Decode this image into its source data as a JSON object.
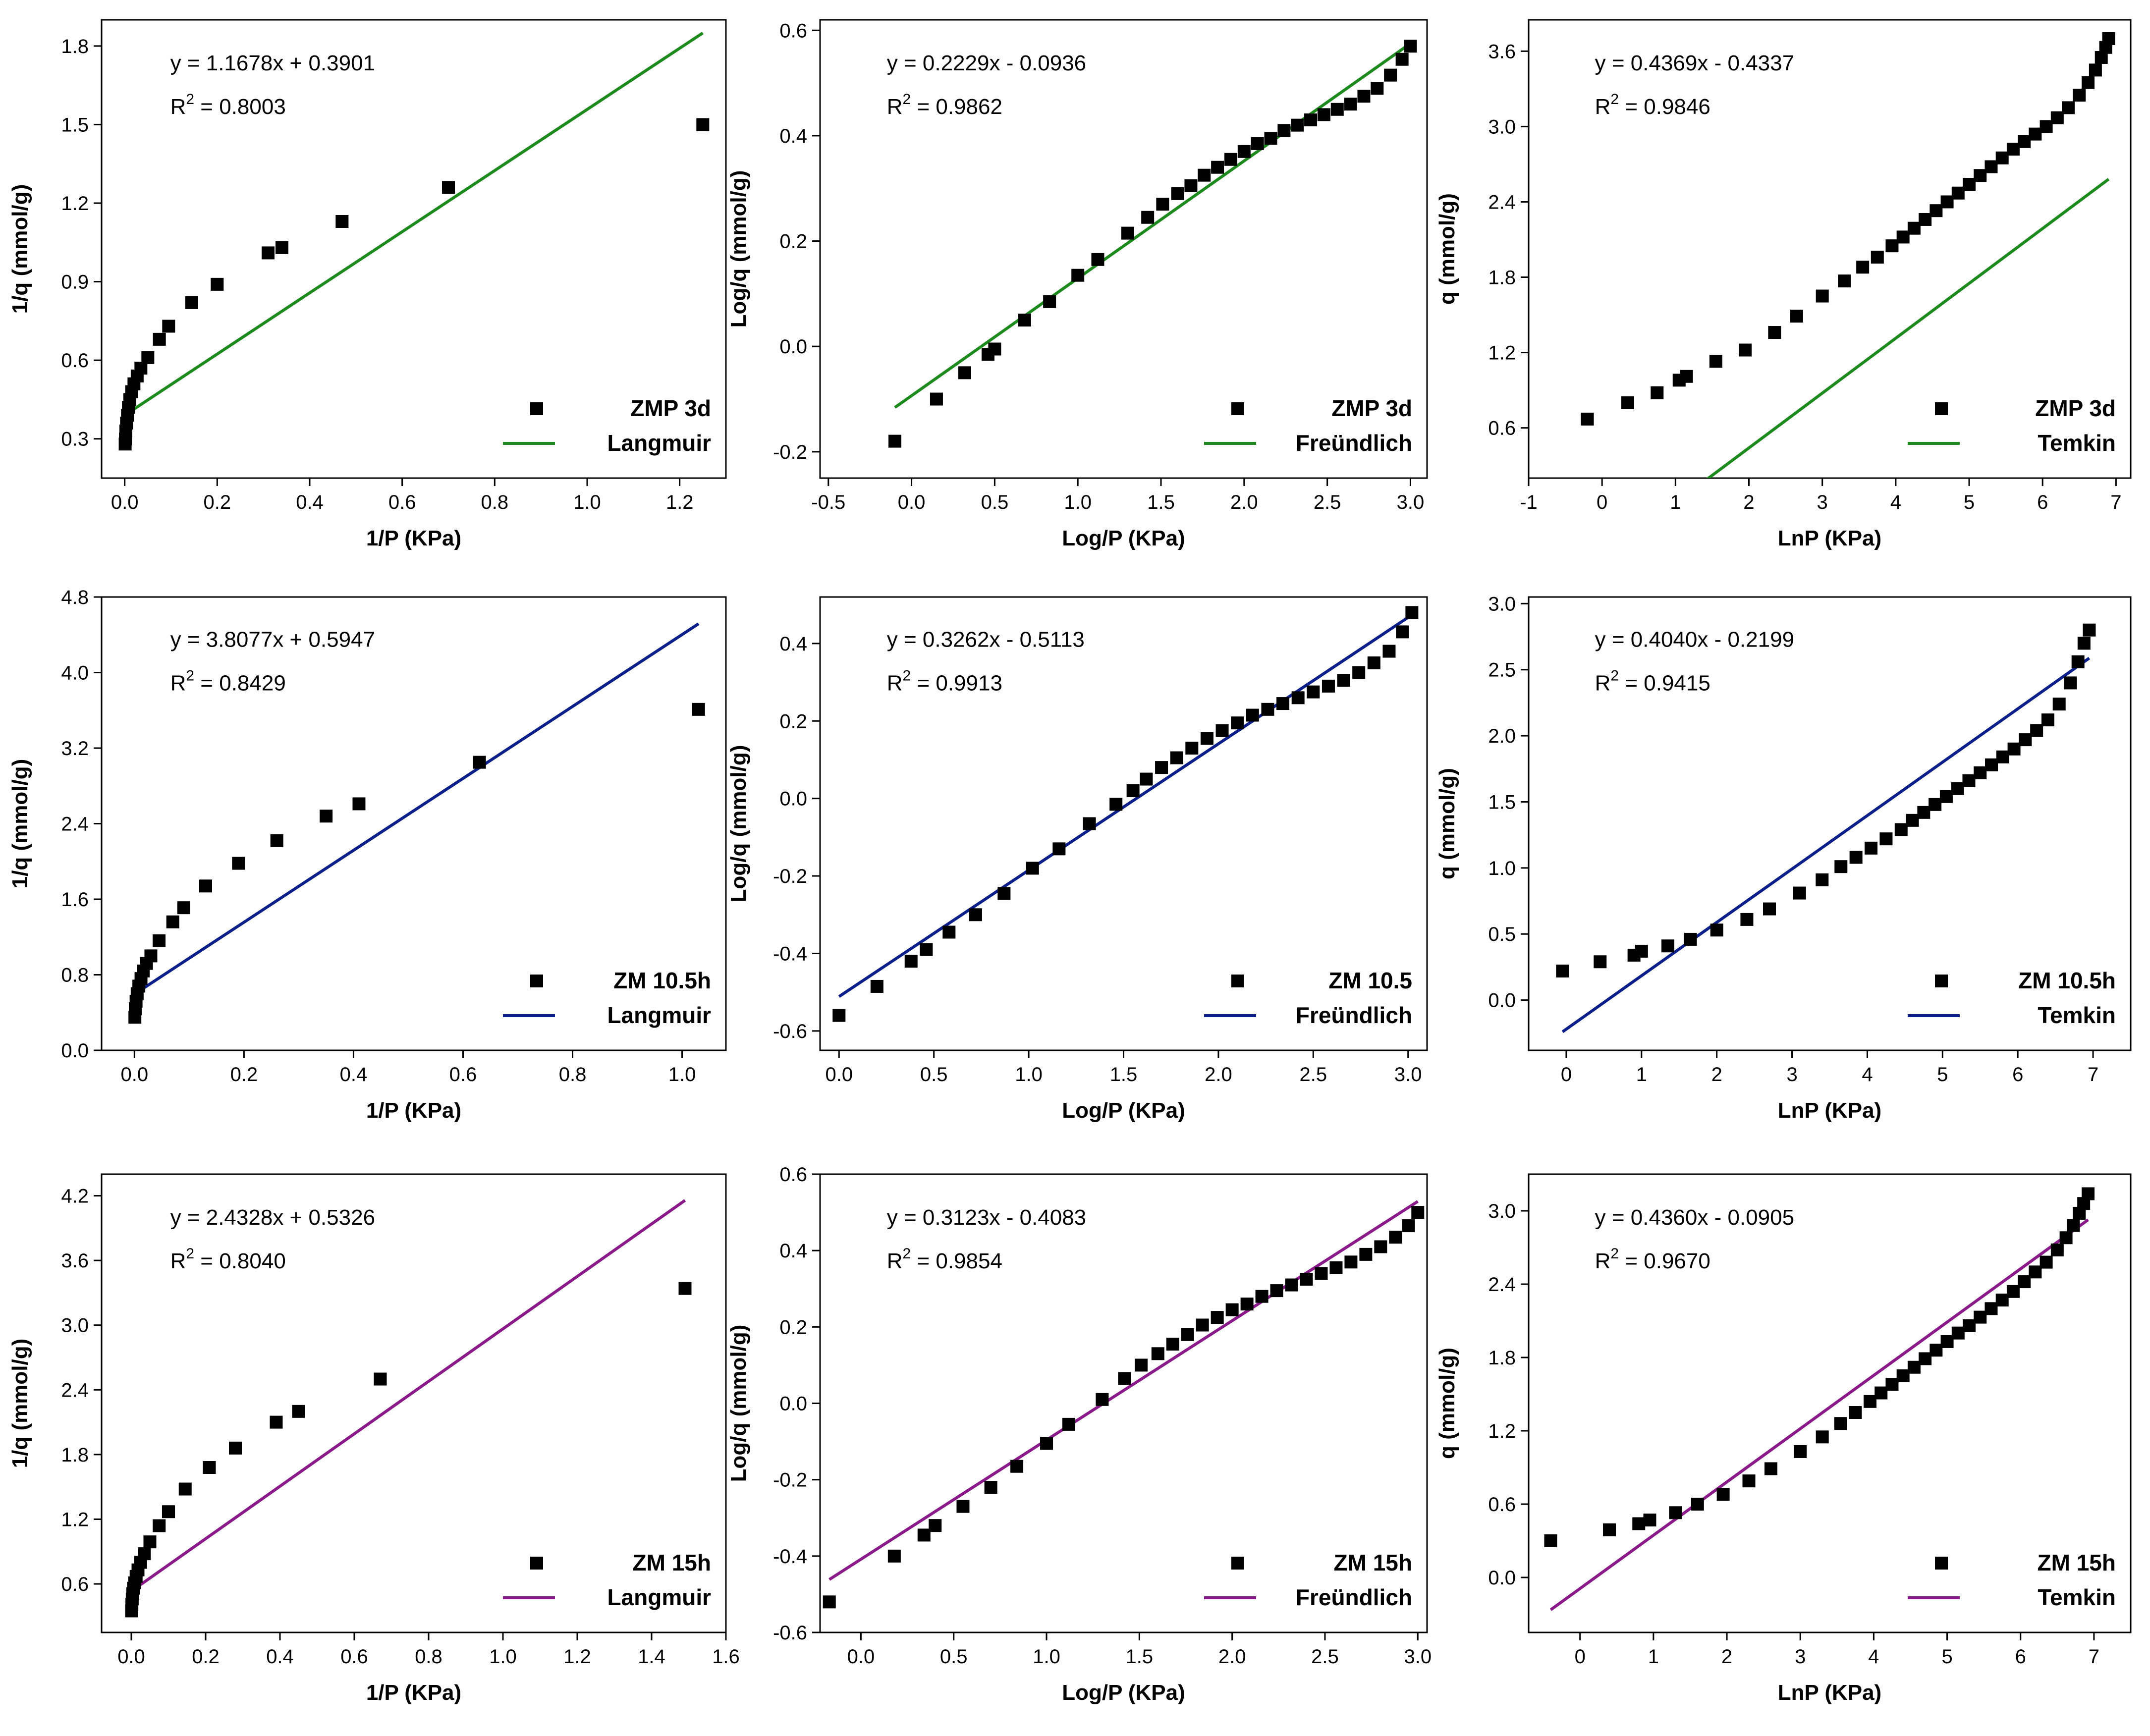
{
  "chart_data": [
    {
      "type": "scatter",
      "model": "Langmuir",
      "xlabel": "1/P (KPa)",
      "ylabel": "1/q (mmol/g)",
      "xlim": [
        -0.05,
        1.3
      ],
      "ylim": [
        0.15,
        1.9
      ],
      "xticks": [
        "0.0",
        "0.2",
        "0.4",
        "0.6",
        "0.8",
        "1.0",
        "1.2"
      ],
      "xtick_values": [
        0,
        0.2,
        0.4,
        0.6,
        0.8,
        1.0,
        1.2
      ],
      "yticks": [
        "0.3",
        "0.6",
        "0.9",
        "1.2",
        "1.5",
        "1.8"
      ],
      "ytick_values": [
        0.3,
        0.6,
        0.9,
        1.2,
        1.5,
        1.8
      ],
      "equation": "y = 1.1678x + 0.3901",
      "r2_label": "R",
      "r2_sup": "2",
      "r2_value": " = 0.8003",
      "legend": {
        "marker_label": "ZMP 3d",
        "line_label": "Langmuir"
      },
      "line": {
        "color": "#1d8a1d",
        "slope": 1.1678,
        "intercept": 0.3901,
        "x_range": [
          0,
          1.25
        ]
      },
      "x": [
        1.25,
        0.7,
        0.47,
        0.34,
        0.31,
        0.2,
        0.145,
        0.095,
        0.075,
        0.05,
        0.035,
        0.027,
        0.02,
        0.015,
        0.011,
        0.008,
        0.006,
        0.004,
        0.0025,
        0.0015,
        0.001
      ],
      "y": [
        1.5,
        1.26,
        1.13,
        1.03,
        1.01,
        0.89,
        0.82,
        0.73,
        0.68,
        0.61,
        0.57,
        0.54,
        0.51,
        0.48,
        0.45,
        0.42,
        0.39,
        0.36,
        0.33,
        0.3,
        0.28
      ]
    },
    {
      "type": "scatter",
      "model": "Freundlich",
      "xlabel": "Log/P (KPa)",
      "ylabel": "Log/q (mmol/g)",
      "xlim": [
        -0.55,
        3.1
      ],
      "ylim": [
        -0.25,
        0.62
      ],
      "xticks": [
        "-0.5",
        "0.0",
        "0.5",
        "1.0",
        "1.5",
        "2.0",
        "2.5",
        "3.0"
      ],
      "xtick_values": [
        -0.5,
        0,
        0.5,
        1.0,
        1.5,
        2.0,
        2.5,
        3.0
      ],
      "yticks": [
        "-0.2",
        "0.0",
        "0.2",
        "0.4",
        "0.6"
      ],
      "ytick_values": [
        -0.2,
        0,
        0.2,
        0.4,
        0.6
      ],
      "equation": "y = 0.2229x - 0.0936",
      "r2_label": "R",
      "r2_sup": "2",
      "r2_value": " = 0.9862",
      "legend": {
        "marker_label": "ZMP 3d",
        "line_label": "Freündlich"
      },
      "line": {
        "color": "#1d8a1d",
        "slope": 0.2229,
        "intercept": -0.0936,
        "x_range": [
          -0.1,
          3.0
        ]
      },
      "x": [
        -0.1,
        0.15,
        0.32,
        0.46,
        0.5,
        0.68,
        0.83,
        1.0,
        1.12,
        1.3,
        1.42,
        1.51,
        1.6,
        1.68,
        1.76,
        1.84,
        1.92,
        2.0,
        2.08,
        2.16,
        2.24,
        2.32,
        2.4,
        2.48,
        2.56,
        2.64,
        2.72,
        2.8,
        2.88,
        2.95,
        3.0
      ],
      "y": [
        -0.18,
        -0.1,
        -0.05,
        -0.015,
        -0.005,
        0.05,
        0.085,
        0.135,
        0.165,
        0.215,
        0.245,
        0.27,
        0.29,
        0.305,
        0.325,
        0.34,
        0.355,
        0.37,
        0.385,
        0.395,
        0.41,
        0.42,
        0.43,
        0.44,
        0.45,
        0.46,
        0.475,
        0.49,
        0.515,
        0.545,
        0.57
      ]
    },
    {
      "type": "scatter",
      "model": "Temkin",
      "xlabel": "LnP (KPa)",
      "ylabel": "q (mmol/g)",
      "xlim": [
        -1,
        7.2
      ],
      "ylim": [
        0.2,
        3.85
      ],
      "xticks": [
        "-1",
        "0",
        "1",
        "2",
        "3",
        "4",
        "5",
        "6",
        "7"
      ],
      "xtick_values": [
        -1,
        0,
        1,
        2,
        3,
        4,
        5,
        6,
        7
      ],
      "yticks": [
        "0.6",
        "1.2",
        "1.8",
        "2.4",
        "3.0",
        "3.6"
      ],
      "ytick_values": [
        0.6,
        1.2,
        1.8,
        2.4,
        3.0,
        3.6
      ],
      "equation": "y = 0.4369x - 0.4337",
      "r2_label": "R",
      "r2_sup": "2",
      "r2_value": " = 0.9846",
      "legend": {
        "marker_label": "ZMP 3d",
        "line_label": "Temkin"
      },
      "line": {
        "color": "#1d8a1d",
        "slope": 0.4369,
        "intercept": -0.4337,
        "x_range": [
          -0.2,
          6.9
        ]
      },
      "x": [
        -0.2,
        0.35,
        0.75,
        1.05,
        1.15,
        1.55,
        1.95,
        2.35,
        2.65,
        3.0,
        3.3,
        3.55,
        3.75,
        3.95,
        4.1,
        4.25,
        4.4,
        4.55,
        4.7,
        4.85,
        5.0,
        5.15,
        5.3,
        5.45,
        5.6,
        5.75,
        5.9,
        6.05,
        6.2,
        6.35,
        6.5,
        6.62,
        6.72,
        6.8,
        6.86,
        6.9
      ],
      "y": [
        0.67,
        0.8,
        0.88,
        0.98,
        1.01,
        1.13,
        1.22,
        1.36,
        1.49,
        1.65,
        1.77,
        1.88,
        1.96,
        2.05,
        2.12,
        2.19,
        2.26,
        2.33,
        2.4,
        2.47,
        2.54,
        2.61,
        2.68,
        2.75,
        2.82,
        2.88,
        2.94,
        3.0,
        3.07,
        3.15,
        3.25,
        3.35,
        3.45,
        3.55,
        3.63,
        3.7
      ]
    },
    {
      "type": "scatter",
      "model": "Langmuir",
      "xlabel": "1/P (KPa)",
      "ylabel": "1/q (mmol/g)",
      "xlim": [
        -0.06,
        1.08
      ],
      "ylim": [
        0,
        4.8
      ],
      "xticks": [
        "0.0",
        "0.2",
        "0.4",
        "0.6",
        "0.8",
        "1.0"
      ],
      "xtick_values": [
        0,
        0.2,
        0.4,
        0.6,
        0.8,
        1.0
      ],
      "yticks": [
        "0.0",
        "0.8",
        "1.6",
        "2.4",
        "3.2",
        "4.0",
        "4.8"
      ],
      "ytick_values": [
        0,
        0.8,
        1.6,
        2.4,
        3.2,
        4.0,
        4.8
      ],
      "equation": "y = 3.8077x + 0.5947",
      "r2_label": "R",
      "r2_sup": "2",
      "r2_value": " = 0.8429",
      "legend": {
        "marker_label": "ZM 10.5h",
        "line_label": "Langmuir"
      },
      "line": {
        "color": "#0b1f8a",
        "slope": 3.8077,
        "intercept": 0.5947,
        "x_range": [
          0,
          1.03
        ]
      },
      "x": [
        1.03,
        0.63,
        0.41,
        0.35,
        0.26,
        0.19,
        0.13,
        0.09,
        0.07,
        0.045,
        0.03,
        0.022,
        0.016,
        0.012,
        0.008,
        0.005,
        0.003,
        0.0015,
        0.0008
      ],
      "y": [
        3.61,
        3.05,
        2.61,
        2.48,
        2.22,
        1.98,
        1.74,
        1.51,
        1.36,
        1.16,
        1.0,
        0.92,
        0.84,
        0.76,
        0.68,
        0.6,
        0.52,
        0.44,
        0.35
      ]
    },
    {
      "type": "scatter",
      "model": "Freundlich",
      "xlabel": "Log/P (KPa)",
      "ylabel": "Log/q (mmol/g)",
      "xlim": [
        -0.1,
        3.1
      ],
      "ylim": [
        -0.65,
        0.52
      ],
      "xticks": [
        "0.0",
        "0.5",
        "1.0",
        "1.5",
        "2.0",
        "2.5",
        "3.0"
      ],
      "xtick_values": [
        0,
        0.5,
        1.0,
        1.5,
        2.0,
        2.5,
        3.0
      ],
      "yticks": [
        "-0.6",
        "-0.4",
        "-0.2",
        "0.0",
        "0.2",
        "0.4"
      ],
      "ytick_values": [
        -0.6,
        -0.4,
        -0.2,
        0,
        0.2,
        0.4
      ],
      "equation": "y = 0.3262x - 0.5113",
      "r2_label": "R",
      "r2_sup": "2",
      "r2_value": " = 0.9913",
      "legend": {
        "marker_label": "ZM 10.5",
        "line_label": "Freündlich"
      },
      "line": {
        "color": "#0b1f8a",
        "slope": 0.3262,
        "intercept": -0.5113,
        "x_range": [
          0,
          3.0
        ]
      },
      "x": [
        0.0,
        0.2,
        0.38,
        0.46,
        0.58,
        0.72,
        0.87,
        1.02,
        1.16,
        1.32,
        1.46,
        1.55,
        1.62,
        1.7,
        1.78,
        1.86,
        1.94,
        2.02,
        2.1,
        2.18,
        2.26,
        2.34,
        2.42,
        2.5,
        2.58,
        2.66,
        2.74,
        2.82,
        2.9,
        2.97,
        3.02
      ],
      "y": [
        -0.56,
        -0.485,
        -0.42,
        -0.39,
        -0.345,
        -0.3,
        -0.245,
        -0.18,
        -0.13,
        -0.065,
        -0.015,
        0.02,
        0.05,
        0.08,
        0.105,
        0.13,
        0.155,
        0.175,
        0.195,
        0.215,
        0.23,
        0.245,
        0.26,
        0.275,
        0.29,
        0.305,
        0.325,
        0.35,
        0.38,
        0.43,
        0.48
      ]
    },
    {
      "type": "scatter",
      "model": "Temkin",
      "xlabel": "LnP (KPa)",
      "ylabel": "q (mmol/g)",
      "xlim": [
        -0.5,
        7.5
      ],
      "ylim": [
        -0.38,
        3.05
      ],
      "xticks": [
        "0",
        "1",
        "2",
        "3",
        "4",
        "5",
        "6",
        "7"
      ],
      "xtick_values": [
        0,
        1,
        2,
        3,
        4,
        5,
        6,
        7
      ],
      "yticks": [
        "0.0",
        "0.5",
        "1.0",
        "1.5",
        "2.0",
        "2.5",
        "3.0"
      ],
      "ytick_values": [
        0,
        0.5,
        1.0,
        1.5,
        2.0,
        2.5,
        3.0
      ],
      "equation": "y = 0.4040x - 0.2199",
      "r2_label": "R",
      "r2_sup": "2",
      "r2_value": " = 0.9415",
      "legend": {
        "marker_label": "ZM 10.5h",
        "line_label": "Temkin"
      },
      "line": {
        "color": "#0b1f8a",
        "slope": 0.404,
        "intercept": -0.2199,
        "x_range": [
          -0.05,
          6.95
        ]
      },
      "x": [
        -0.05,
        0.45,
        0.9,
        1.0,
        1.35,
        1.65,
        2.0,
        2.4,
        2.7,
        3.1,
        3.4,
        3.65,
        3.85,
        4.05,
        4.25,
        4.45,
        4.6,
        4.75,
        4.9,
        5.05,
        5.2,
        5.35,
        5.5,
        5.65,
        5.8,
        5.95,
        6.1,
        6.25,
        6.4,
        6.55,
        6.7,
        6.8,
        6.88,
        6.95
      ],
      "y": [
        0.22,
        0.29,
        0.34,
        0.37,
        0.41,
        0.46,
        0.53,
        0.61,
        0.69,
        0.81,
        0.91,
        1.01,
        1.08,
        1.15,
        1.22,
        1.29,
        1.36,
        1.42,
        1.48,
        1.54,
        1.6,
        1.66,
        1.72,
        1.78,
        1.84,
        1.9,
        1.97,
        2.04,
        2.12,
        2.24,
        2.4,
        2.56,
        2.7,
        2.8
      ]
    },
    {
      "type": "scatter",
      "model": "Langmuir",
      "xlabel": "1/P (KPa)",
      "ylabel": "1/q (mmol/g)",
      "xlim": [
        -0.08,
        1.6
      ],
      "ylim": [
        0.15,
        4.4
      ],
      "xticks": [
        "0.0",
        "0.2",
        "0.4",
        "0.6",
        "0.8",
        "1.0",
        "1.2",
        "1.4",
        "1.6"
      ],
      "xtick_values": [
        0,
        0.2,
        0.4,
        0.6,
        0.8,
        1.0,
        1.2,
        1.4,
        1.6
      ],
      "yticks": [
        "0.6",
        "1.2",
        "1.8",
        "2.4",
        "3.0",
        "3.6",
        "4.2"
      ],
      "ytick_values": [
        0.6,
        1.2,
        1.8,
        2.4,
        3.0,
        3.6,
        4.2
      ],
      "equation": "y = 2.4328x + 0.5326",
      "r2_label": "R",
      "r2_sup": "2",
      "r2_value": " = 0.8040",
      "legend": {
        "marker_label": "ZM 15h",
        "line_label": "Langmuir"
      },
      "line": {
        "color": "#8a1a8a",
        "slope": 2.4328,
        "intercept": 0.5326,
        "x_range": [
          0,
          1.49
        ]
      },
      "x": [
        1.49,
        0.67,
        0.45,
        0.39,
        0.28,
        0.21,
        0.145,
        0.1,
        0.075,
        0.05,
        0.035,
        0.025,
        0.018,
        0.013,
        0.009,
        0.006,
        0.004,
        0.0025,
        0.0015,
        0.0008
      ],
      "y": [
        3.34,
        2.5,
        2.2,
        2.1,
        1.86,
        1.68,
        1.48,
        1.27,
        1.14,
        0.99,
        0.88,
        0.8,
        0.73,
        0.67,
        0.61,
        0.56,
        0.51,
        0.46,
        0.41,
        0.35
      ]
    },
    {
      "type": "scatter",
      "model": "Freundlich",
      "xlabel": "Log/P (KPa)",
      "ylabel": "Log/q (mmol/g)",
      "xlim": [
        -0.22,
        3.05
      ],
      "ylim": [
        -0.6,
        0.6
      ],
      "xticks": [
        "0.0",
        "0.5",
        "1.0",
        "1.5",
        "2.0",
        "2.5",
        "3.0"
      ],
      "xtick_values": [
        0,
        0.5,
        1.0,
        1.5,
        2.0,
        2.5,
        3.0
      ],
      "yticks": [
        "-0.6",
        "-0.4",
        "-0.2",
        "0.0",
        "0.2",
        "0.4",
        "0.6"
      ],
      "ytick_values": [
        -0.6,
        -0.4,
        -0.2,
        0,
        0.2,
        0.4,
        0.6
      ],
      "equation": "y = 0.3123x - 0.4083",
      "r2_label": "R",
      "r2_sup": "2",
      "r2_value": " = 0.9854",
      "legend": {
        "marker_label": "ZM 15h",
        "line_label": "Freündlich"
      },
      "line": {
        "color": "#8a1a8a",
        "slope": 0.3123,
        "intercept": -0.4083,
        "x_range": [
          -0.17,
          3.0
        ]
      },
      "x": [
        -0.17,
        0.18,
        0.34,
        0.4,
        0.55,
        0.7,
        0.84,
        1.0,
        1.12,
        1.3,
        1.42,
        1.51,
        1.6,
        1.68,
        1.76,
        1.84,
        1.92,
        2.0,
        2.08,
        2.16,
        2.24,
        2.32,
        2.4,
        2.48,
        2.56,
        2.64,
        2.72,
        2.8,
        2.88,
        2.95,
        3.0
      ],
      "y": [
        -0.52,
        -0.4,
        -0.345,
        -0.32,
        -0.27,
        -0.22,
        -0.165,
        -0.105,
        -0.055,
        0.01,
        0.065,
        0.1,
        0.13,
        0.155,
        0.18,
        0.205,
        0.225,
        0.245,
        0.26,
        0.28,
        0.295,
        0.31,
        0.325,
        0.34,
        0.355,
        0.37,
        0.39,
        0.41,
        0.435,
        0.465,
        0.5
      ]
    },
    {
      "type": "scatter",
      "model": "Temkin",
      "xlabel": "LnP (KPa)",
      "ylabel": "q (mmol/g)",
      "xlim": [
        -0.7,
        7.5
      ],
      "ylim": [
        -0.45,
        3.3
      ],
      "xticks": [
        "0",
        "1",
        "2",
        "3",
        "4",
        "5",
        "6",
        "7"
      ],
      "xtick_values": [
        0,
        1,
        2,
        3,
        4,
        5,
        6,
        7
      ],
      "yticks": [
        "0.0",
        "0.6",
        "1.2",
        "1.8",
        "2.4",
        "3.0"
      ],
      "ytick_values": [
        0,
        0.6,
        1.2,
        1.8,
        2.4,
        3.0
      ],
      "equation": "y = 0.4360x - 0.0905",
      "r2_label": "R",
      "r2_sup": "2",
      "r2_value": " = 0.9670",
      "legend": {
        "marker_label": "ZM 15h",
        "line_label": "Temkin"
      },
      "line": {
        "color": "#8a1a8a",
        "slope": 0.436,
        "intercept": -0.0905,
        "x_range": [
          -0.4,
          6.92
        ]
      },
      "x": [
        -0.4,
        0.4,
        0.8,
        0.95,
        1.3,
        1.6,
        1.95,
        2.3,
        2.6,
        3.0,
        3.3,
        3.55,
        3.75,
        3.95,
        4.1,
        4.25,
        4.4,
        4.55,
        4.7,
        4.85,
        5.0,
        5.15,
        5.3,
        5.45,
        5.6,
        5.75,
        5.9,
        6.05,
        6.2,
        6.35,
        6.5,
        6.62,
        6.72,
        6.8,
        6.86,
        6.92
      ],
      "y": [
        0.3,
        0.39,
        0.44,
        0.47,
        0.53,
        0.6,
        0.68,
        0.79,
        0.89,
        1.03,
        1.15,
        1.26,
        1.35,
        1.44,
        1.51,
        1.58,
        1.65,
        1.72,
        1.79,
        1.86,
        1.93,
        2.0,
        2.06,
        2.13,
        2.2,
        2.27,
        2.34,
        2.42,
        2.5,
        2.58,
        2.68,
        2.78,
        2.88,
        2.98,
        3.06,
        3.14
      ]
    }
  ]
}
